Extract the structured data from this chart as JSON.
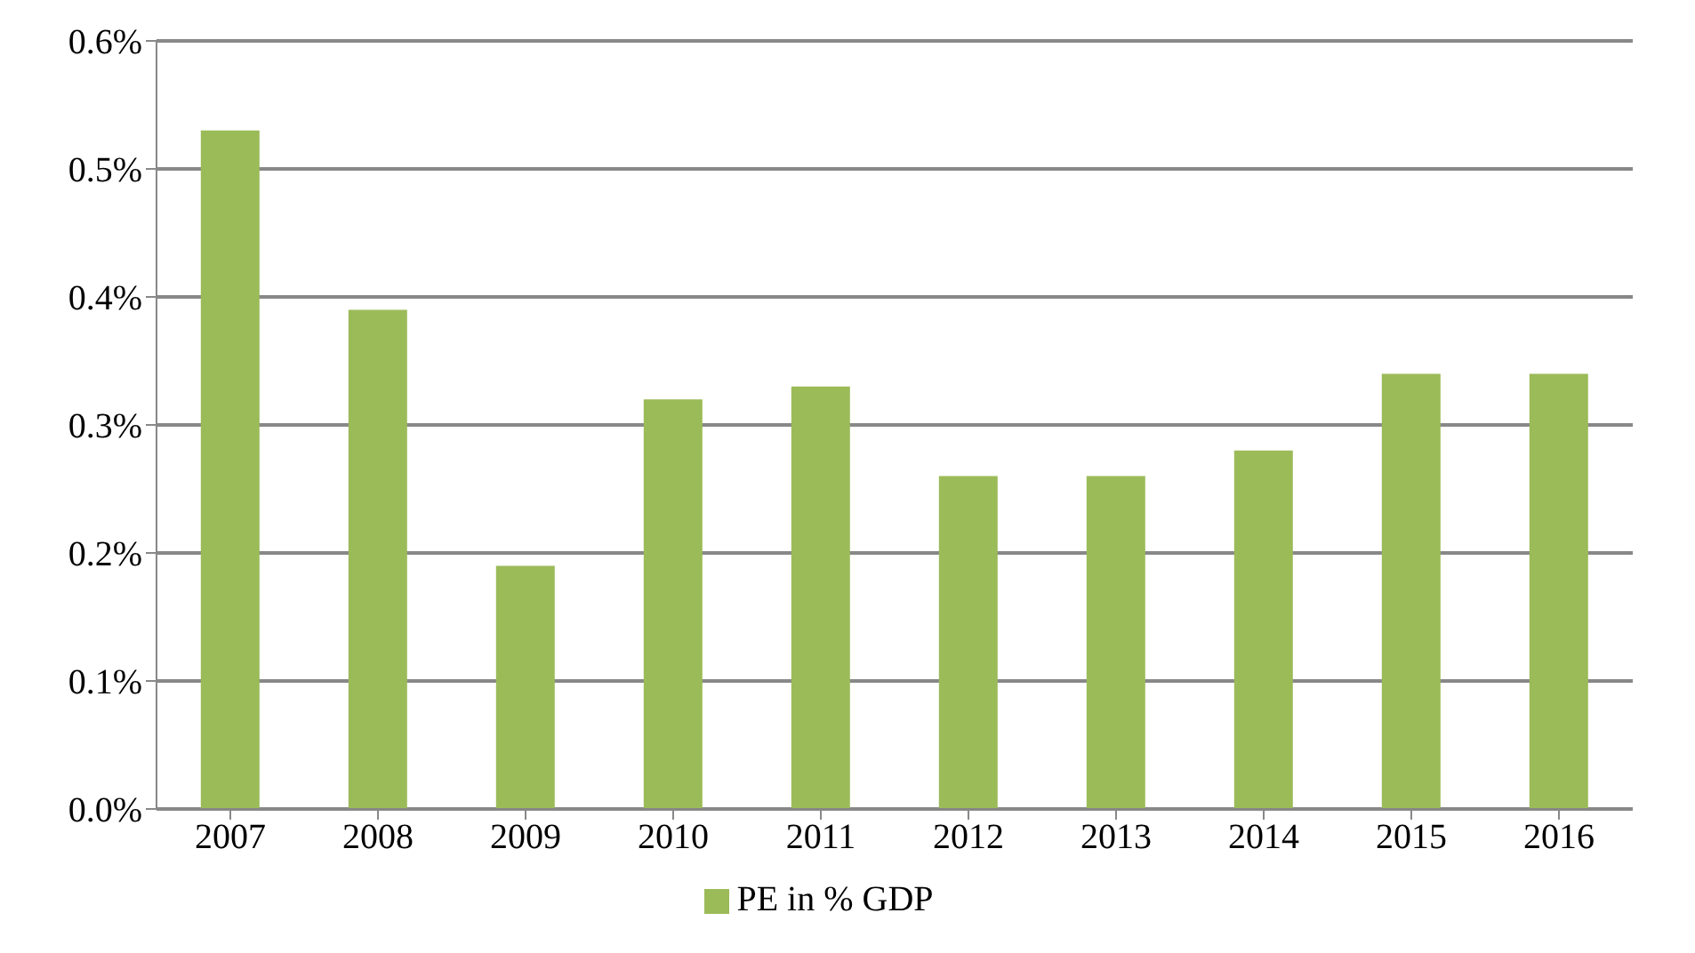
{
  "chart_data": {
    "type": "bar",
    "categories": [
      "2007",
      "2008",
      "2009",
      "2010",
      "2011",
      "2012",
      "2013",
      "2014",
      "2015",
      "2016"
    ],
    "series": [
      {
        "name": "PE in % GDP",
        "color": "#9bbb59",
        "values": [
          0.53,
          0.39,
          0.19,
          0.32,
          0.33,
          0.26,
          0.26,
          0.28,
          0.34,
          0.34
        ]
      }
    ],
    "ylim": [
      0,
      0.6
    ],
    "yticks": [
      {
        "value": 0,
        "label": "0.0%"
      },
      {
        "value": 0.1,
        "label": "0.1%"
      },
      {
        "value": 0.2,
        "label": "0.2%"
      },
      {
        "value": 0.3,
        "label": "0.3%"
      },
      {
        "value": 0.4,
        "label": "0.4%"
      },
      {
        "value": 0.5,
        "label": "0.5%"
      },
      {
        "value": 0.6,
        "label": "0.6%"
      }
    ],
    "grid": "y",
    "legend": "bottom"
  }
}
